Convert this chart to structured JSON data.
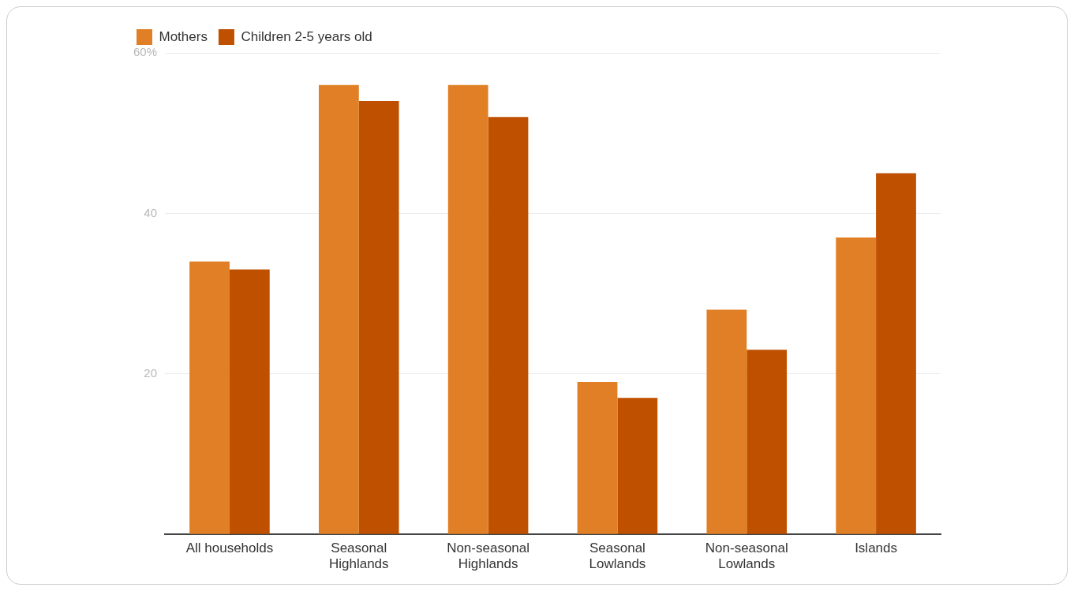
{
  "chart_data": {
    "type": "bar",
    "categories": [
      "All households",
      "Seasonal Highlands",
      "Non-seasonal Highlands",
      "Seasonal Lowlands",
      "Non-seasonal Lowlands",
      "Islands"
    ],
    "series": [
      {
        "name": "Mothers",
        "color": "#e07f25",
        "values": [
          34,
          56,
          56,
          19,
          28,
          37
        ]
      },
      {
        "name": "Children 2-5 years old",
        "color": "#bf5000",
        "values": [
          33,
          54,
          52,
          17,
          23,
          45
        ]
      }
    ],
    "ylim": [
      0,
      60
    ],
    "yticks": [
      {
        "value": 0,
        "label": null
      },
      20,
      40,
      {
        "value": 60,
        "label": "60%"
      }
    ],
    "grid": "y",
    "legend": "top left"
  }
}
